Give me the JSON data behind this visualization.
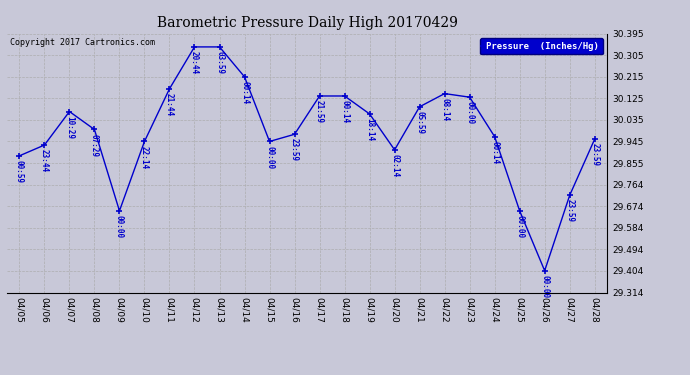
{
  "title": "Barometric Pressure Daily High 20170429",
  "copyright": "Copyright 2017 Cartronics.com",
  "legend_label": "Pressure  (Inches/Hg)",
  "dates": [
    "04/05",
    "04/06",
    "04/07",
    "04/08",
    "04/09",
    "04/10",
    "04/11",
    "04/12",
    "04/13",
    "04/14",
    "04/15",
    "04/16",
    "04/17",
    "04/18",
    "04/19",
    "04/20",
    "04/21",
    "04/22",
    "04/23",
    "04/24",
    "04/25",
    "04/26",
    "04/27",
    "04/28"
  ],
  "values": [
    29.885,
    29.93,
    30.07,
    29.995,
    29.655,
    29.945,
    30.165,
    30.34,
    30.34,
    30.215,
    29.945,
    29.975,
    30.135,
    30.135,
    30.06,
    29.91,
    30.09,
    30.145,
    30.13,
    29.965,
    29.655,
    29.405,
    29.72,
    29.955
  ],
  "times": [
    "00:59",
    "23:44",
    "10:29",
    "07:29",
    "00:00",
    "22:14",
    "21:44",
    "20:44",
    "03:59",
    "00:14",
    "00:00",
    "23:59",
    "21:59",
    "00:14",
    "18:14",
    "02:14",
    "05:59",
    "08:14",
    "00:00",
    "00:14",
    "00:00",
    "00:00",
    "23:59",
    "23:59"
  ],
  "ylim": [
    29.314,
    30.395
  ],
  "yticks": [
    29.314,
    29.404,
    29.494,
    29.584,
    29.674,
    29.764,
    29.855,
    29.945,
    30.035,
    30.125,
    30.215,
    30.305,
    30.395
  ],
  "line_color": "#0000cc",
  "marker_color": "#0000cc",
  "bg_color": "#c8c8d8",
  "grid_color": "#aaaaaa",
  "title_color": "#000000",
  "copyright_color": "#000000",
  "label_color": "#0000cc",
  "legend_bg": "#0000cc",
  "legend_text_color": "#ffffff"
}
